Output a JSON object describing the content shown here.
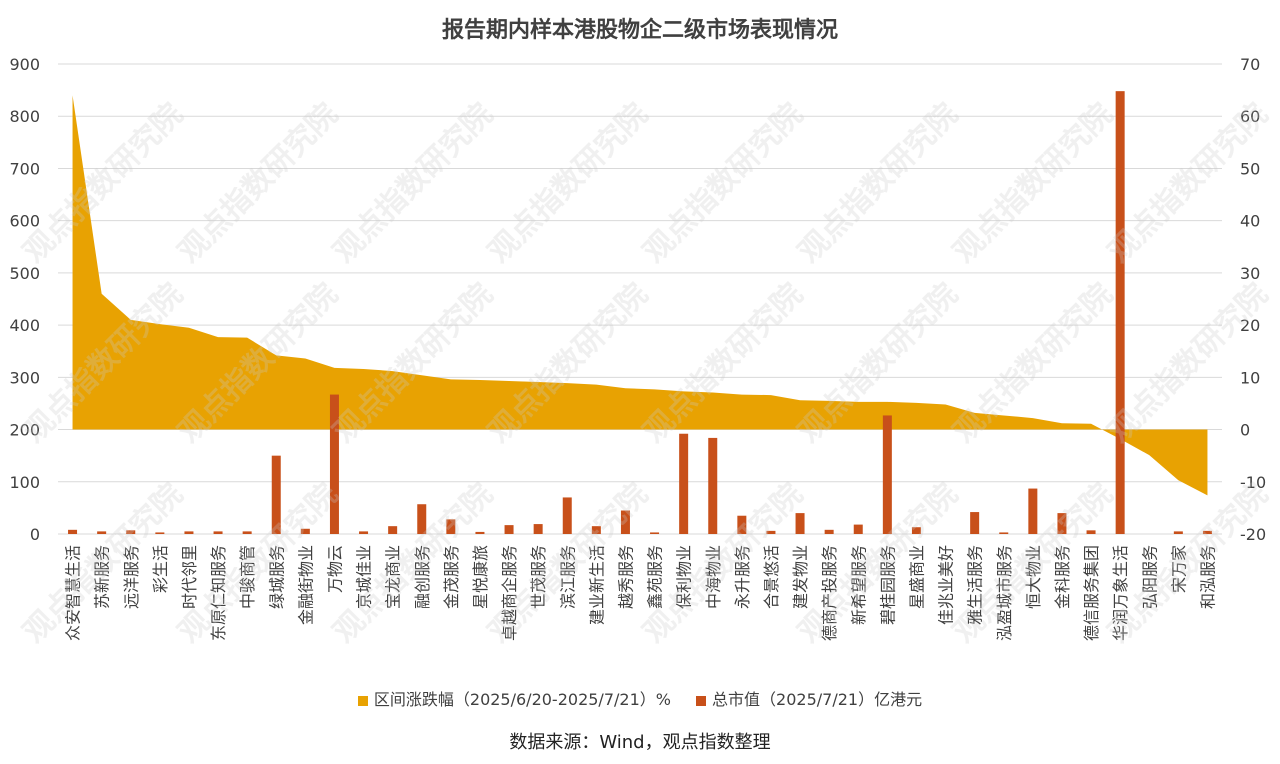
{
  "chart_data": {
    "type": "bar+area",
    "title": "报告期内样本港股物企二级市场表现情况",
    "categories": [
      "众安智慧生活",
      "苏新服务",
      "远洋服务",
      "彩生活",
      "时代邻里",
      "东原仁知服务",
      "中骏商管",
      "绿城服务",
      "金融街物业",
      "万物云",
      "京城佳业",
      "宝龙商业",
      "融创服务",
      "金茂服务",
      "星悦康旅",
      "卓越商企服务",
      "世茂服务",
      "滨江服务",
      "建业新生活",
      "越秀服务",
      "鑫苑服务",
      "保利物业",
      "中海物业",
      "永升服务",
      "合景悠活",
      "建发物业",
      "德商产投服务",
      "新希望服务",
      "碧桂园服务",
      "星盛商业",
      "佳兆业美好",
      "雅生活服务",
      "泓盈城市服务",
      "恒大物业",
      "金科服务",
      "德信服务集团",
      "华润万象生活",
      "弘阳服务",
      "宋万家",
      "和泓服务"
    ],
    "series": [
      {
        "name": "区间涨跌幅（2025/6/20-2025/7/21）%",
        "type": "area",
        "axis": "right",
        "color": "#E8A202",
        "values": [
          64,
          26,
          21,
          20.2,
          19.5,
          17.7,
          17.6,
          14.2,
          13.6,
          11.8,
          11.6,
          11.2,
          10.4,
          9.6,
          9.5,
          9.3,
          9.1,
          8.9,
          8.6,
          7.9,
          7.7,
          7.3,
          7.1,
          6.7,
          6.6,
          5.6,
          5.5,
          5.3,
          5.3,
          5.1,
          4.8,
          3.2,
          2.7,
          2.2,
          1.2,
          1.1,
          -1.8,
          -4.9,
          -9.7,
          -12.6
        ]
      },
      {
        "name": "总市值（2025/7/21）亿港元",
        "type": "bar",
        "axis": "left",
        "color": "#C8501A",
        "values": [
          8,
          5,
          7,
          3,
          5,
          5,
          5,
          150,
          10,
          267,
          5,
          15,
          57,
          28,
          4,
          17,
          19,
          70,
          15,
          45,
          3,
          192,
          184,
          35,
          6,
          40,
          8,
          18,
          227,
          13,
          0,
          42,
          3,
          87,
          40,
          7,
          848,
          0,
          5,
          6
        ]
      }
    ],
    "left_axis": {
      "min": 0,
      "max": 900,
      "ticks": [
        "0",
        "100",
        "200",
        "300",
        "400",
        "500",
        "600",
        "700",
        "800",
        "900"
      ]
    },
    "right_axis": {
      "min": -20,
      "max": 70,
      "ticks": [
        "-20",
        "-10",
        "0",
        "10",
        "20",
        "30",
        "40",
        "50",
        "60",
        "70"
      ]
    },
    "grid": true,
    "legend_position": "bottom",
    "source": "数据来源：Wind，观点指数整理",
    "watermark": "观点指数研究院"
  }
}
